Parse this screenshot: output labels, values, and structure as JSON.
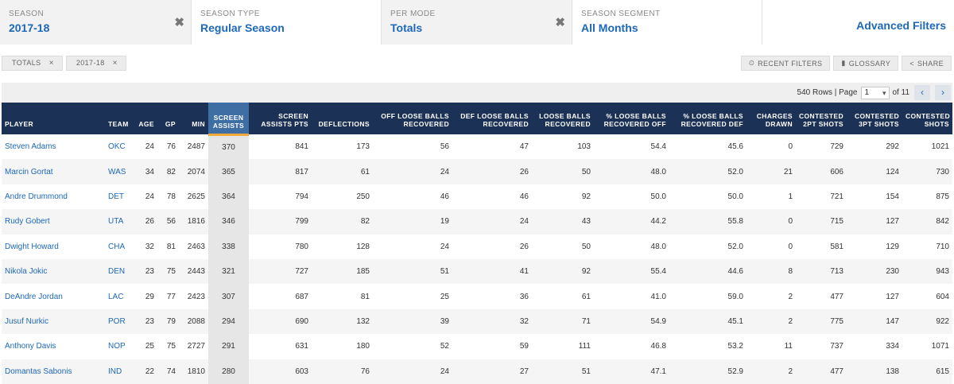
{
  "filters": [
    {
      "label": "SEASON",
      "value": "2017-18",
      "clearable": true
    },
    {
      "label": "SEASON TYPE",
      "value": "Regular Season",
      "clearable": false
    },
    {
      "label": "PER MODE",
      "value": "Totals",
      "clearable": true
    },
    {
      "label": "SEASON SEGMENT",
      "value": "All Months",
      "clearable": false
    }
  ],
  "advanced_filters": "Advanced Filters",
  "chips": [
    {
      "label": "TOTALS",
      "close": "×"
    },
    {
      "label": "2017-18",
      "close": "×"
    }
  ],
  "actions": [
    {
      "icon": "clock-icon",
      "glyph": "⏲",
      "label": "RECENT FILTERS"
    },
    {
      "icon": "book-icon",
      "glyph": "▮",
      "label": "GLOSSARY"
    },
    {
      "icon": "share-icon",
      "glyph": "<",
      "label": "SHARE"
    }
  ],
  "pager": {
    "rows_text": "540 Rows | Page",
    "page": "1",
    "of_text": "of 11",
    "prev": "‹",
    "next": "›"
  },
  "table": {
    "columns": [
      "PLAYER",
      "TEAM",
      "AGE",
      "GP",
      "MIN",
      "SCREEN ASSISTS",
      "SCREEN ASSISTS PTS",
      "DEFLECTIONS",
      "OFF LOOSE BALLS RECOVERED",
      "DEF LOOSE BALLS RECOVERED",
      "LOOSE BALLS RECOVERED",
      "% LOOSE BALLS RECOVERED OFF",
      "% LOOSE BALLS RECOVERED DEF",
      "CHARGES DRAWN",
      "CONTESTED 2PT SHOTS",
      "CONTESTED 3PT SHOTS",
      "CONTESTED SHOTS"
    ],
    "sorted_column": "SCREEN ASSISTS",
    "rows": [
      [
        "Steven Adams",
        "OKC",
        "24",
        "76",
        "2487",
        "370",
        "841",
        "173",
        "56",
        "47",
        "103",
        "54.4",
        "45.6",
        "0",
        "729",
        "292",
        "1021"
      ],
      [
        "Marcin Gortat",
        "WAS",
        "34",
        "82",
        "2074",
        "365",
        "817",
        "61",
        "24",
        "26",
        "50",
        "48.0",
        "52.0",
        "21",
        "606",
        "124",
        "730"
      ],
      [
        "Andre Drummond",
        "DET",
        "24",
        "78",
        "2625",
        "364",
        "794",
        "250",
        "46",
        "46",
        "92",
        "50.0",
        "50.0",
        "1",
        "721",
        "154",
        "875"
      ],
      [
        "Rudy Gobert",
        "UTA",
        "26",
        "56",
        "1816",
        "346",
        "799",
        "82",
        "19",
        "24",
        "43",
        "44.2",
        "55.8",
        "0",
        "715",
        "127",
        "842"
      ],
      [
        "Dwight Howard",
        "CHA",
        "32",
        "81",
        "2463",
        "338",
        "780",
        "128",
        "24",
        "26",
        "50",
        "48.0",
        "52.0",
        "0",
        "581",
        "129",
        "710"
      ],
      [
        "Nikola Jokic",
        "DEN",
        "23",
        "75",
        "2443",
        "321",
        "727",
        "185",
        "51",
        "41",
        "92",
        "55.4",
        "44.6",
        "8",
        "713",
        "230",
        "943"
      ],
      [
        "DeAndre Jordan",
        "LAC",
        "29",
        "77",
        "2423",
        "307",
        "687",
        "81",
        "25",
        "36",
        "61",
        "41.0",
        "59.0",
        "2",
        "477",
        "127",
        "604"
      ],
      [
        "Jusuf Nurkic",
        "POR",
        "23",
        "79",
        "2088",
        "294",
        "690",
        "132",
        "39",
        "32",
        "71",
        "54.9",
        "45.1",
        "2",
        "775",
        "147",
        "922"
      ],
      [
        "Anthony Davis",
        "NOP",
        "25",
        "75",
        "2727",
        "291",
        "631",
        "180",
        "52",
        "59",
        "111",
        "46.8",
        "53.2",
        "11",
        "737",
        "334",
        "1071"
      ],
      [
        "Domantas Sabonis",
        "IND",
        "22",
        "74",
        "1810",
        "280",
        "603",
        "76",
        "24",
        "27",
        "51",
        "47.1",
        "52.9",
        "2",
        "477",
        "138",
        "615"
      ]
    ]
  },
  "colors": {
    "header_bg": "#1b3155",
    "sorted_header_bg": "#3f6ea5",
    "sort_accent": "#f2a93b",
    "link": "#1d68b8"
  }
}
